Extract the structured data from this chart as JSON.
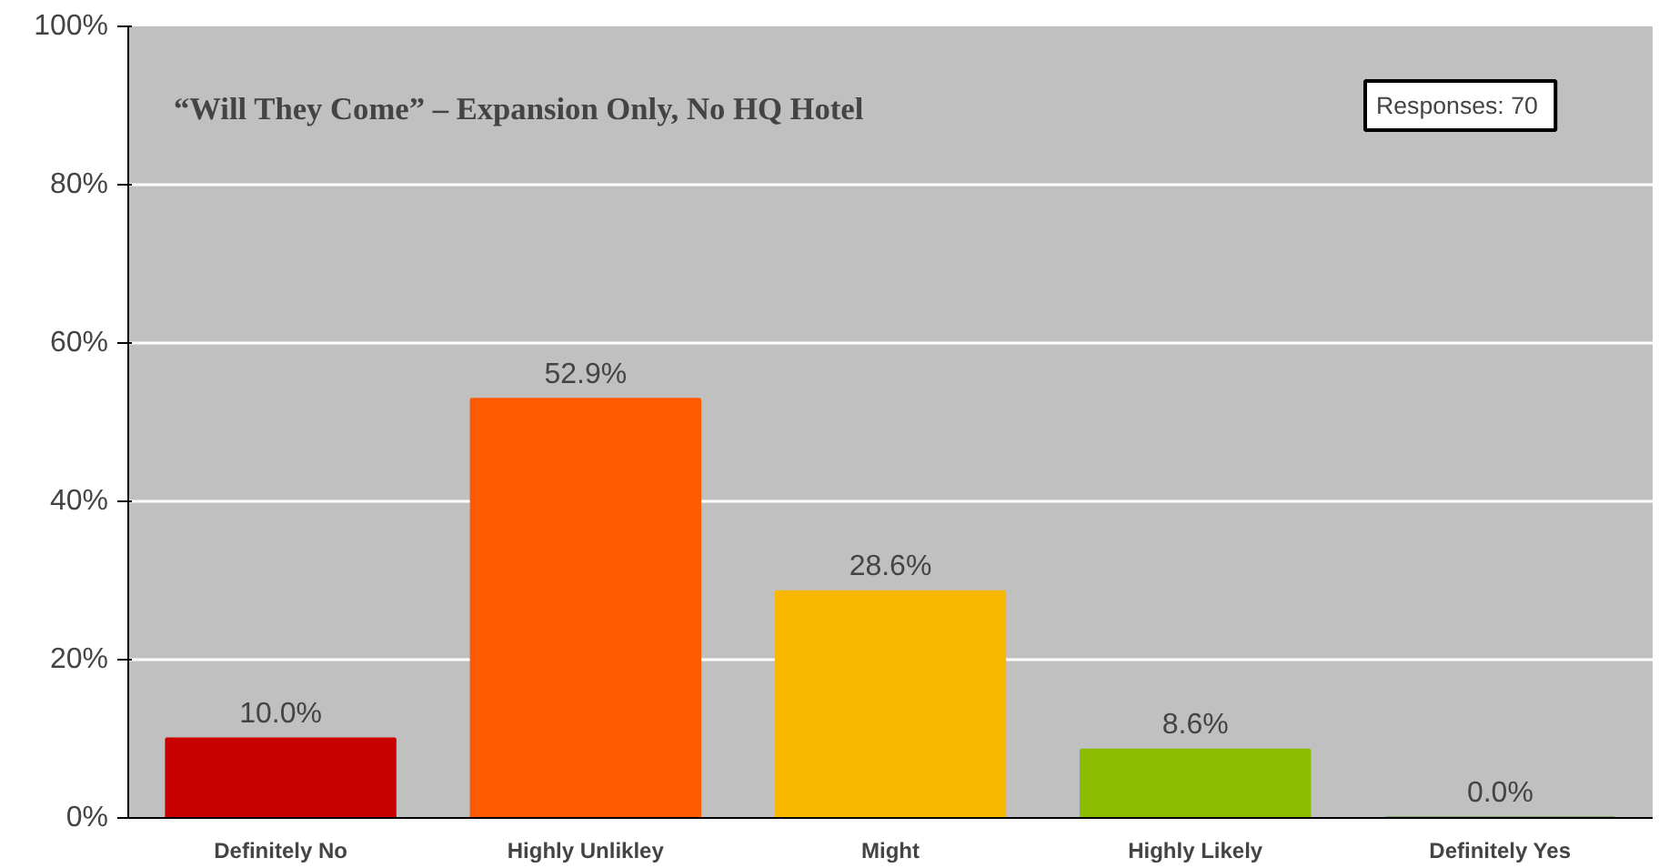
{
  "chart_data": {
    "type": "bar",
    "title": "“Will They Come” – Expansion Only, No HQ Hotel",
    "categories": [
      "Definitely No",
      "Highly Unlikley",
      "Might",
      "Highly Likely",
      "Definitely Yes"
    ],
    "values": [
      10.0,
      52.9,
      28.6,
      8.6,
      0.0
    ],
    "colors": [
      "#c80000",
      "#ff5a00",
      "#f8b800",
      "#8cbc00",
      "#2e8b00"
    ],
    "value_labels": [
      "10.0%",
      "52.9%",
      "28.6%",
      "8.6%",
      "0.0%"
    ],
    "ylim": [
      0,
      100
    ],
    "yticks": [
      {
        "value": 0,
        "label": "0%"
      },
      {
        "value": 20,
        "label": "20%"
      },
      {
        "value": 40,
        "label": "40%"
      },
      {
        "value": 60,
        "label": "60%"
      },
      {
        "value": 80,
        "label": "80%"
      },
      {
        "value": 100,
        "label": "100%"
      }
    ],
    "grid": "y",
    "annotations": [
      "Responses:  70"
    ]
  }
}
